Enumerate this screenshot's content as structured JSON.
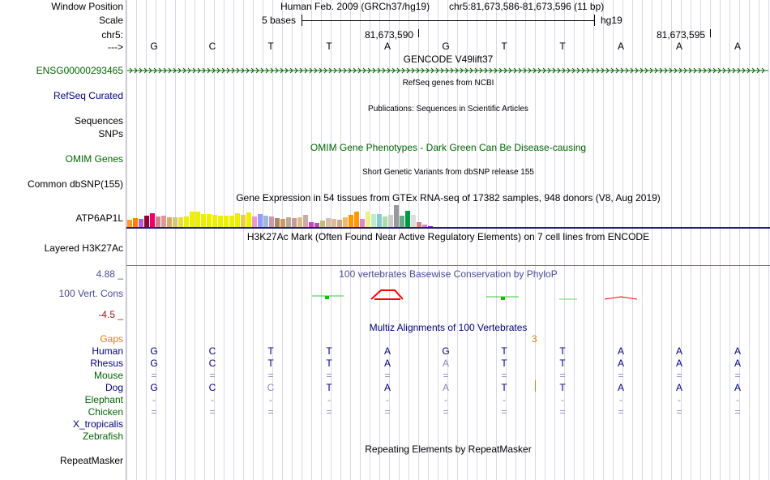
{
  "labels": {
    "window_position": "Window Position",
    "scale": "Scale",
    "chr": "chr5:",
    "arrow": "--->",
    "gencode_gene": "ENSG00000293465",
    "refseq": "RefSeq Curated",
    "sequences": "Sequences",
    "snps": "SNPs",
    "omim": "OMIM Genes",
    "common_dbsnp": "Common dbSNP(155)",
    "atp6ap1l": "ATP6AP1L",
    "layered": "Layered H3K27Ac",
    "cons_max": "4.88 _",
    "cons_label": "100 Vert. Cons",
    "cons_min": "-4.5 _"
  },
  "header": {
    "assembly": "Human Feb. 2009 (GRCh37/hg19)",
    "position": "chr5:81,673,586-81,673,596 (11 bp)",
    "scale_text": "5 bases",
    "scale_db": "hg19",
    "pos_1": "81,673,590",
    "pos_2": "81,673,595"
  },
  "bases": [
    "G",
    "C",
    "T",
    "T",
    "A",
    "G",
    "T",
    "T",
    "A",
    "A",
    "A"
  ],
  "tracks": {
    "gencode": "GENCODE V49lift37",
    "refseq": "RefSeq genes from NCBI",
    "publications": "Publications: Sequences in Scientific Articles",
    "omim": "OMIM Gene Phenotypes - Dark Green Can Be Disease-causing",
    "dbsnp": "Short Genetic Variants from dbSNP release 155",
    "gtex": "Gene Expression in 54 tissues from GTEx RNA-seq of 17382 samples, 948 donors (V8, Aug 2019)",
    "h3k27ac": "H3K27Ac Mark (Often Found Near Active Regulatory Elements) on 7 cell lines from ENCODE",
    "phylop": "100 vertebrates Basewise Conservation by PhyloP",
    "multiz": "Multiz Alignments of 100 Vertebrates",
    "repeatmasker": "Repeating Elements by RepeatMasker"
  },
  "gtex_expression": [
    0.45,
    0.55,
    0.5,
    0.7,
    0.85,
    0.65,
    0.7,
    0.6,
    0.6,
    0.62,
    0.64,
    0.95,
    0.95,
    0.8,
    0.8,
    0.75,
    0.72,
    0.7,
    0.72,
    0.85,
    0.75,
    0.88,
    0.65,
    0.8,
    0.7,
    0.65,
    0.55,
    0.5,
    0.6,
    0.55,
    0.6,
    0.75,
    0.3,
    0.25,
    0.4,
    0.55,
    0.5,
    0.45,
    0.6,
    0.75,
    0.95,
    0.5,
    0.95,
    0.8,
    0.8,
    0.65,
    0.75,
    1.35,
    0.7,
    1.0,
    0.75,
    0.3,
    0.15,
    0.05
  ],
  "gtex_colors": [
    "#ff9933",
    "#ff8000",
    "#aa66cc",
    "#990033",
    "#ee0066",
    "#cc8888",
    "#dd9999",
    "#ddaa66",
    "#cccc77",
    "#eedd33",
    "#eeee00",
    "#eeee00",
    "#eeee00",
    "#eeee00",
    "#eeee00",
    "#eeee00",
    "#eeee00",
    "#eeee00",
    "#eeee00",
    "#eeee00",
    "#eecc44",
    "#eeee00",
    "#ee99cc",
    "#9999ff",
    "#99bbdd",
    "#cc99aa",
    "#aa8866",
    "#cc9966",
    "#bbaa99",
    "#cc9999",
    "#ddbb88",
    "#ccaaaa",
    "#cc44cc",
    "#aa55aa",
    "#ccbb77",
    "#ddbbaa",
    "#ddbb99",
    "#ccaa88",
    "#eebb66",
    "#ff9900",
    "#ff9900",
    "#dd88cc",
    "#eeee88",
    "#bbeecc",
    "#88cccc",
    "#aaddaa",
    "#cccccc",
    "#999999",
    "#66aa88",
    "#009944",
    "#dddddd",
    "#cc8888",
    "#cc88cc",
    "#9900cc"
  ],
  "multiz": {
    "gaps_label": "Gaps",
    "gap_count": "3",
    "species": [
      {
        "name": "Human",
        "row": [
          "G",
          "C",
          "T",
          "T",
          "A",
          "G",
          "T",
          "T",
          "A",
          "A",
          "A"
        ],
        "dim": []
      },
      {
        "name": "Rhesus",
        "row": [
          "G",
          "C",
          "T",
          "T",
          "A",
          "A",
          "T",
          "T",
          "A",
          "A",
          "A"
        ],
        "dim": [
          5
        ]
      },
      {
        "name": "Mouse",
        "row": [
          "=",
          "=",
          "=",
          "=",
          "=",
          "=",
          "=",
          "=",
          "=",
          "=",
          "="
        ],
        "dim": []
      },
      {
        "name": "Dog",
        "row": [
          "G",
          "C",
          "C",
          "T",
          "A",
          "A",
          "T",
          "T",
          "A",
          "A",
          "A"
        ],
        "dim": [
          2,
          5
        ]
      },
      {
        "name": "Elephant",
        "row": [
          "-",
          "-",
          "-",
          "-",
          "-",
          "-",
          "-",
          "-",
          "-",
          "-",
          "-"
        ],
        "dim": []
      },
      {
        "name": "Chicken",
        "row": [
          "=",
          "=",
          "=",
          "=",
          "=",
          "=",
          "=",
          "=",
          "=",
          "=",
          "="
        ],
        "dim": []
      },
      {
        "name": "X_tropicalis",
        "row": [
          "",
          "",
          "",
          "",
          "",
          "",
          "",
          "",
          "",
          "",
          ""
        ],
        "dim": []
      },
      {
        "name": "Zebrafish",
        "row": [
          "",
          "",
          "",
          "",
          "",
          "",
          "",
          "",
          "",
          "",
          ""
        ],
        "dim": []
      }
    ]
  },
  "repeatmasker_label": "RepeatMasker",
  "colors": {
    "navy": "#000080",
    "green": "#006600",
    "blue_gray": "#4a4a9a",
    "gaps_orange": "#e08000",
    "cons_red": "#aa1111",
    "purple_line": "#202070"
  }
}
